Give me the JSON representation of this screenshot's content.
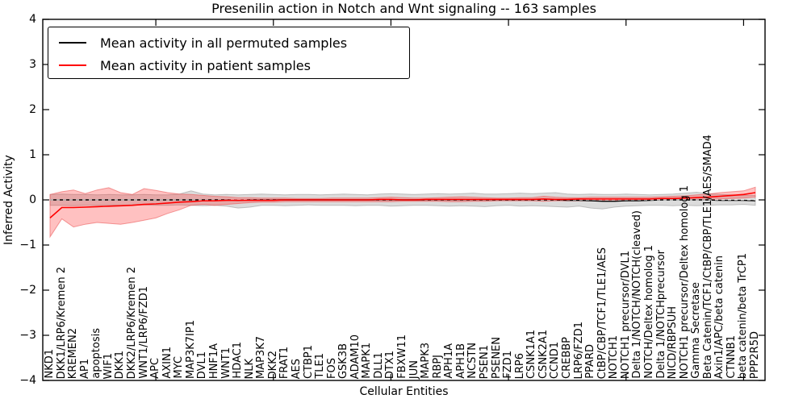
{
  "chart": {
    "title": "Presenilin action in Notch and Wnt signaling -- 163 samples",
    "xlabel": "Cellular Entities",
    "ylabel": "Inferred Activity"
  },
  "legend": {
    "entries": [
      {
        "label": "Mean activity in all permuted samples",
        "color": "#000000"
      },
      {
        "label": "Mean activity in patient samples",
        "color": "#ff0000"
      }
    ]
  },
  "colors": {
    "permuted_line": "#000000",
    "patient_line": "#ff0000",
    "permuted_band_fill": "rgba(130,130,130,0.28)",
    "permuted_band_edge": "rgba(130,130,130,0.45)",
    "patient_band_fill": "rgba(255,50,50,0.30)",
    "patient_band_edge": "rgba(235,90,90,0.60)",
    "zero_dash": "#ffffff",
    "frame": "#000000"
  },
  "chart_data": {
    "type": "line",
    "title": "Presenilin action in Notch and Wnt signaling -- 163 samples",
    "xlabel": "Cellular Entities",
    "ylabel": "Inferred Activity",
    "ylim": [
      -4,
      4
    ],
    "grid": false,
    "legend_position": "upper-left",
    "y_tick_values": [
      4,
      3,
      2,
      1,
      0,
      -1,
      -2,
      -3,
      -4
    ],
    "y_tick_labels": [
      "4",
      "3",
      "2",
      "1",
      "0",
      "−1",
      "−2",
      "−3",
      "−4"
    ],
    "x_major_tick_values": [
      10,
      20,
      30,
      40,
      50,
      60
    ],
    "zero_line": 0,
    "categories": [
      "NKD1",
      "DKK1/LRP6/Kremen 2",
      "KREMEN2",
      "AP1",
      "apoptosis",
      "WIF1",
      "DKK1",
      "DKK2/LRP6/Kremen 2",
      "WNT1/LRP6/FZD1",
      "APC",
      "AXIN1",
      "MYC",
      "MAP3K7IP1",
      "DVL1",
      "HNF1A",
      "WNT1",
      "HDAC1",
      "NLK",
      "MAP3K7",
      "DKK2",
      "FRAT1",
      "AES",
      "CTBP1",
      "TLE1",
      "FOS",
      "GSK3B",
      "ADAM10",
      "MAPK1",
      "DLL1",
      "DTX1",
      "FBXW11",
      "JUN",
      "MAPK3",
      "RBPJ",
      "APH1A",
      "APH1B",
      "NCSTN",
      "PSEN1",
      "PSENEN",
      "FZD1",
      "LRP6",
      "CSNK1A1",
      "CSNK2A1",
      "CCND1",
      "CREBBP",
      "LRP6/FZD1",
      "PPARD",
      "CtBP/CBP/TCF1/TLE1/AES",
      "NOTCH1",
      "NOTCH1 precursor/DVL1",
      "Delta 1/NOTCH/NOTCH(cleaved)",
      "NOTCH/Deltex homolog 1",
      "Delta 1/NOTCHprecursor",
      "NICD/RBPSUH",
      "NOTCH1 precursor/Deltex homolog 1",
      "Gamma Secretase",
      "Beta Catenin/TCF1/CtBP/CBP/TLE1/AES/SMAD4",
      "Axin1/APC/beta catenin",
      "CTNNB1",
      "beta catenin/beta TrCP1",
      "PPP2R5D"
    ],
    "series": [
      {
        "name": "Mean activity in all permuted samples",
        "color": "#000000",
        "values": [
          0,
          0,
          0,
          0,
          0,
          0,
          0,
          0,
          0,
          0,
          0,
          0,
          0,
          0,
          0,
          0,
          -0.01,
          0,
          0,
          0,
          0,
          0,
          0,
          0,
          0,
          0,
          0,
          0,
          0,
          0,
          0,
          0,
          0,
          0,
          0,
          0,
          0,
          0,
          0,
          0,
          0,
          0,
          0,
          0,
          -0.01,
          -0.01,
          -0.02,
          -0.03,
          -0.03,
          -0.02,
          -0.02,
          -0.01,
          0,
          0,
          0,
          0,
          0,
          -0.01,
          -0.01,
          -0.01,
          -0.02
        ],
        "band_upper": [
          0.12,
          0.13,
          0.12,
          0.12,
          0.11,
          0.12,
          0.11,
          0.11,
          0.12,
          0.11,
          0.11,
          0.13,
          0.2,
          0.13,
          0.11,
          0.12,
          0.11,
          0.12,
          0.13,
          0.12,
          0.11,
          0.12,
          0.12,
          0.11,
          0.12,
          0.13,
          0.12,
          0.11,
          0.13,
          0.14,
          0.13,
          0.12,
          0.13,
          0.14,
          0.13,
          0.14,
          0.15,
          0.13,
          0.13,
          0.14,
          0.15,
          0.14,
          0.15,
          0.16,
          0.13,
          0.12,
          0.13,
          0.12,
          0.12,
          0.13,
          0.12,
          0.11,
          0.12,
          0.13,
          0.15,
          0.17,
          0.14,
          0.12,
          0.11,
          0.1,
          0.1
        ],
        "band_lower": [
          -0.12,
          -0.12,
          -0.13,
          -0.12,
          -0.12,
          -0.11,
          -0.12,
          -0.11,
          -0.11,
          -0.12,
          -0.12,
          -0.11,
          -0.12,
          -0.13,
          -0.12,
          -0.14,
          -0.18,
          -0.16,
          -0.12,
          -0.12,
          -0.13,
          -0.12,
          -0.11,
          -0.12,
          -0.12,
          -0.12,
          -0.13,
          -0.12,
          -0.12,
          -0.14,
          -0.13,
          -0.12,
          -0.12,
          -0.13,
          -0.14,
          -0.13,
          -0.14,
          -0.15,
          -0.13,
          -0.12,
          -0.14,
          -0.13,
          -0.14,
          -0.15,
          -0.16,
          -0.14,
          -0.18,
          -0.2,
          -0.16,
          -0.14,
          -0.13,
          -0.12,
          -0.12,
          -0.13,
          -0.12,
          -0.13,
          -0.12,
          -0.11,
          -0.11,
          -0.1,
          -0.12
        ]
      },
      {
        "name": "Mean activity in patient samples",
        "color": "#ff0000",
        "values": [
          -0.4,
          -0.17,
          -0.17,
          -0.16,
          -0.15,
          -0.14,
          -0.13,
          -0.12,
          -0.1,
          -0.09,
          -0.07,
          -0.05,
          -0.04,
          -0.02,
          -0.02,
          -0.01,
          -0.01,
          -0.01,
          -0.01,
          -0.01,
          0,
          0,
          0,
          0,
          0,
          0,
          0,
          0,
          0.01,
          0.01,
          0,
          0,
          0.01,
          0.01,
          0.01,
          0.01,
          0.01,
          0.01,
          0.01,
          0.01,
          0.01,
          0.01,
          0.02,
          0.01,
          0.01,
          0.02,
          0.02,
          0.02,
          0.02,
          0.02,
          0.02,
          0.02,
          0.03,
          0.03,
          0.04,
          0.05,
          0.06,
          0.08,
          0.1,
          0.12,
          0.16
        ],
        "band_upper": [
          0.12,
          0.18,
          0.22,
          0.14,
          0.22,
          0.27,
          0.16,
          0.12,
          0.25,
          0.21,
          0.16,
          0.13,
          0.12,
          0.1,
          0.08,
          0.07,
          0.05,
          0.05,
          0.04,
          0.04,
          0.04,
          0.03,
          0.03,
          0.03,
          0.04,
          0.04,
          0.04,
          0.04,
          0.05,
          0.06,
          0.05,
          0.04,
          0.04,
          0.05,
          0.06,
          0.07,
          0.06,
          0.05,
          0.04,
          0.04,
          0.05,
          0.05,
          0.08,
          0.06,
          0.05,
          0.05,
          0.06,
          0.06,
          0.06,
          0.06,
          0.06,
          0.06,
          0.07,
          0.08,
          0.09,
          0.11,
          0.13,
          0.16,
          0.18,
          0.2,
          0.28
        ],
        "band_lower": [
          -0.82,
          -0.42,
          -0.6,
          -0.54,
          -0.5,
          -0.52,
          -0.54,
          -0.5,
          -0.45,
          -0.4,
          -0.3,
          -0.22,
          -0.12,
          -0.1,
          -0.12,
          -0.1,
          -0.08,
          -0.06,
          -0.05,
          -0.05,
          -0.04,
          -0.04,
          -0.04,
          -0.04,
          -0.04,
          -0.04,
          -0.04,
          -0.04,
          -0.04,
          -0.04,
          -0.03,
          -0.03,
          -0.03,
          -0.03,
          -0.04,
          -0.04,
          -0.03,
          -0.03,
          -0.02,
          -0.02,
          -0.02,
          -0.02,
          -0.03,
          -0.02,
          -0.02,
          -0.02,
          -0.02,
          -0.01,
          -0.01,
          -0.01,
          -0.01,
          -0.01,
          0,
          0,
          0,
          0.01,
          0.01,
          0.02,
          0.03,
          0.04,
          0.06
        ]
      }
    ]
  }
}
